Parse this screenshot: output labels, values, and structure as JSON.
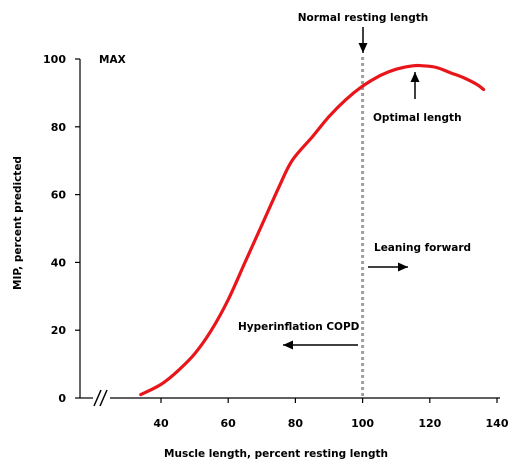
{
  "chart_data": {
    "type": "line",
    "title": "",
    "xlabel": "Muscle length, percent resting length",
    "ylabel": "MIP, percent predicted",
    "xlim": [
      30,
      140
    ],
    "ylim": [
      0,
      100
    ],
    "x_ticks": [
      40,
      60,
      80,
      100,
      120,
      140
    ],
    "y_ticks": [
      0,
      20,
      40,
      60,
      80,
      100
    ],
    "grid": false,
    "axis_break": "x-axis near origin",
    "series": [
      {
        "color": "#e8161b",
        "x": [
          34,
          40,
          45,
          50,
          55,
          60,
          65,
          70,
          75,
          79,
          85,
          90,
          95,
          100,
          105,
          110,
          115,
          118,
          122,
          126,
          130,
          134,
          136
        ],
        "y": [
          1,
          4,
          8,
          13,
          20,
          29,
          40,
          51,
          62,
          70,
          77,
          83,
          88,
          92,
          95,
          97,
          98,
          98,
          97.5,
          96,
          94.5,
          92.5,
          91
        ]
      }
    ],
    "reference_line": {
      "x": 100,
      "style": "dotted",
      "color": "#a0a0a0"
    },
    "annotations": {
      "max_label": "MAX",
      "normal_resting": "Normal resting length",
      "optimal": "Optimal length",
      "leaning": "Leaning forward",
      "hyperinflation": "Hyperinflation COPD"
    }
  }
}
